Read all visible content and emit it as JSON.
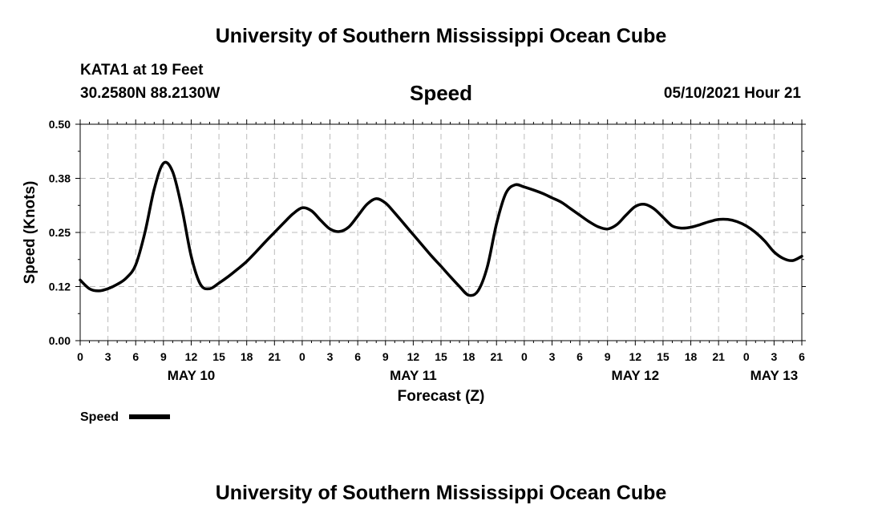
{
  "header": {
    "title": "University of Southern Mississippi Ocean Cube",
    "station": "KATA1 at 19 Feet",
    "coords": "30.2580N  88.2130W",
    "subtitle": "Speed",
    "datetime": "05/10/2021 Hour 21"
  },
  "footer": {
    "title": "University of Southern Mississippi Ocean Cube"
  },
  "colors": {
    "line": "#000000",
    "grid": "#bbbbbb",
    "axis": "#000000",
    "background": "#ffffff"
  },
  "chart_data": {
    "type": "line",
    "title": "Speed",
    "xlabel": "Forecast (Z)",
    "ylabel": "Speed (Knots)",
    "x_unit": "hours since 2021-05-10 00Z",
    "xlim": [
      0,
      78
    ],
    "ylim": [
      0,
      0.5
    ],
    "yticks": [
      0.0,
      0.125,
      0.25,
      0.375,
      0.5
    ],
    "ytick_labels": [
      "0.00",
      "0.12",
      "0.25",
      "0.38",
      "0.50"
    ],
    "xticks": [
      0,
      3,
      6,
      9,
      12,
      15,
      18,
      21,
      24,
      27,
      30,
      33,
      36,
      39,
      42,
      45,
      48,
      51,
      54,
      57,
      60,
      63,
      66,
      69,
      72,
      75,
      78
    ],
    "xtick_labels": [
      "0",
      "3",
      "6",
      "9",
      "12",
      "15",
      "18",
      "21",
      "0",
      "3",
      "6",
      "9",
      "12",
      "15",
      "18",
      "21",
      "0",
      "3",
      "6",
      "9",
      "12",
      "15",
      "18",
      "21",
      "0",
      "3",
      "6"
    ],
    "day_labels": [
      {
        "x": 12,
        "label": "MAY 10"
      },
      {
        "x": 36,
        "label": "MAY 11"
      },
      {
        "x": 60,
        "label": "MAY 12"
      },
      {
        "x": 75,
        "label": "MAY 13"
      }
    ],
    "grid": true,
    "legend": [
      {
        "name": "Speed",
        "position": "bottom-left"
      }
    ],
    "series": [
      {
        "name": "Speed",
        "x": [
          0,
          1,
          2,
          3,
          4,
          5,
          6,
          7,
          8,
          9,
          10,
          11,
          12,
          13,
          14,
          15,
          16,
          17,
          18,
          19,
          20,
          21,
          22,
          23,
          24,
          25,
          26,
          27,
          28,
          29,
          30,
          31,
          32,
          33,
          34,
          35,
          36,
          37,
          38,
          39,
          40,
          41,
          42,
          43,
          44,
          45,
          46,
          47,
          48,
          49,
          50,
          51,
          52,
          53,
          54,
          55,
          56,
          57,
          58,
          59,
          60,
          61,
          62,
          63,
          64,
          65,
          66,
          67,
          68,
          69,
          70,
          71,
          72,
          73,
          74,
          75,
          76,
          77,
          78
        ],
        "values": [
          0.14,
          0.12,
          0.115,
          0.12,
          0.13,
          0.145,
          0.175,
          0.25,
          0.35,
          0.41,
          0.39,
          0.305,
          0.195,
          0.13,
          0.12,
          0.133,
          0.148,
          0.165,
          0.183,
          0.205,
          0.228,
          0.25,
          0.272,
          0.293,
          0.307,
          0.3,
          0.278,
          0.258,
          0.252,
          0.262,
          0.288,
          0.315,
          0.328,
          0.318,
          0.295,
          0.27,
          0.245,
          0.22,
          0.195,
          0.172,
          0.148,
          0.125,
          0.105,
          0.115,
          0.17,
          0.27,
          0.34,
          0.36,
          0.355,
          0.348,
          0.34,
          0.33,
          0.32,
          0.305,
          0.29,
          0.275,
          0.263,
          0.258,
          0.268,
          0.29,
          0.31,
          0.315,
          0.305,
          0.285,
          0.265,
          0.26,
          0.262,
          0.268,
          0.275,
          0.28,
          0.28,
          0.275,
          0.265,
          0.25,
          0.23,
          0.205,
          0.19,
          0.185,
          0.195
        ]
      }
    ]
  }
}
